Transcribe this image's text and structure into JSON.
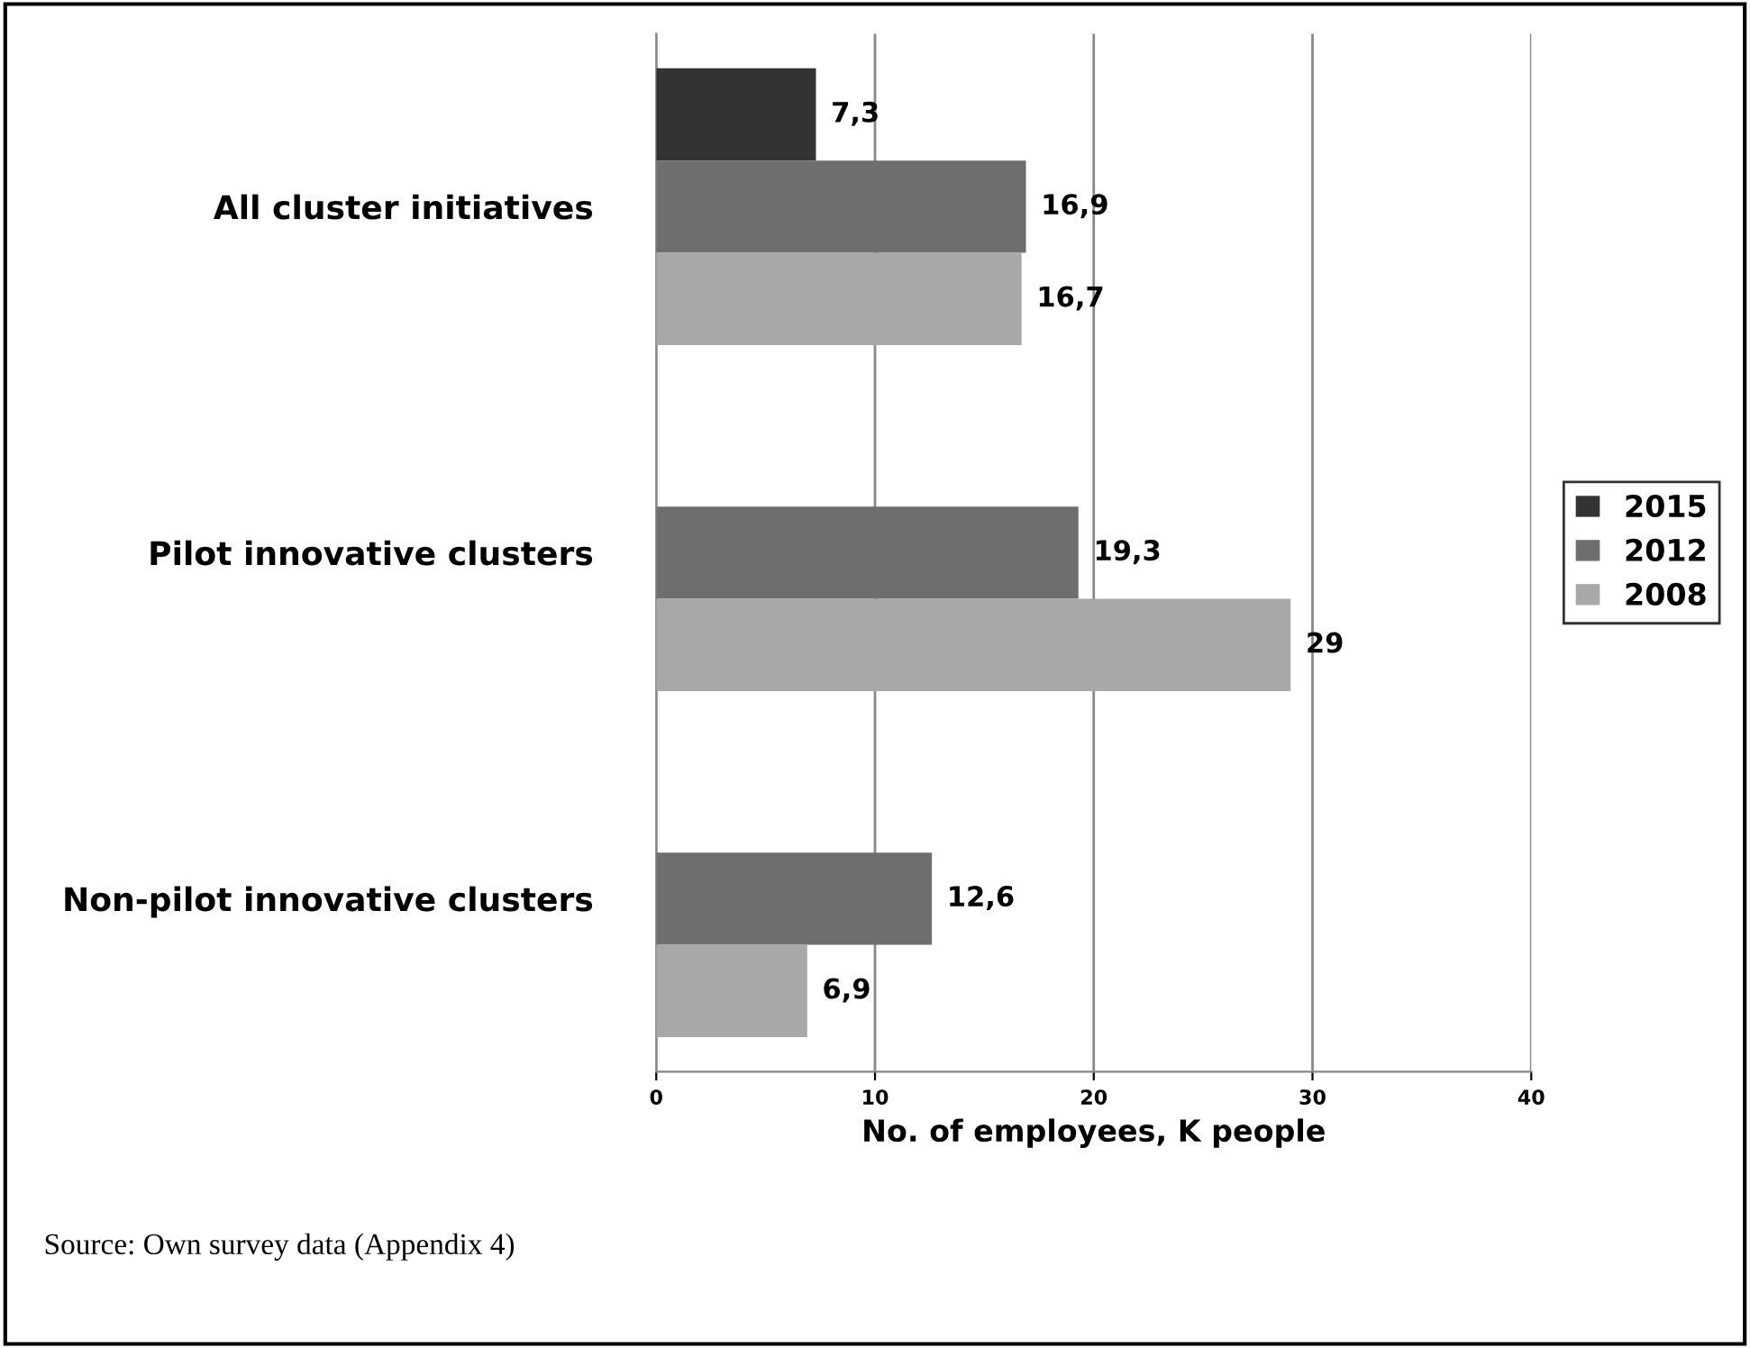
{
  "chart_data": {
    "type": "bar",
    "orientation": "horizontal",
    "xlabel": "No. of employees, K people",
    "categories": [
      "All cluster initiatives",
      "Pilot innovative clusters",
      "Non-pilot innovative clusters"
    ],
    "series": [
      {
        "name": "2015",
        "color": "#333333",
        "values": [
          7.3,
          null,
          null
        ],
        "value_labels": [
          "7,3",
          null,
          null
        ]
      },
      {
        "name": "2012",
        "color": "#6e6e6e",
        "values": [
          16.9,
          19.3,
          12.6
        ],
        "value_labels": [
          "16,9",
          "19,3",
          "12,6"
        ]
      },
      {
        "name": "2008",
        "color": "#a8a8a8",
        "values": [
          16.7,
          29,
          6.9
        ],
        "value_labels": [
          "16,7",
          "29",
          "6,9"
        ]
      }
    ],
    "xlim": [
      0,
      40
    ],
    "xticks": [
      0,
      10,
      20,
      30,
      40
    ],
    "grid": "x",
    "legend": "right",
    "annotations": [
      "Source: Own survey data (Appendix 4)"
    ]
  }
}
